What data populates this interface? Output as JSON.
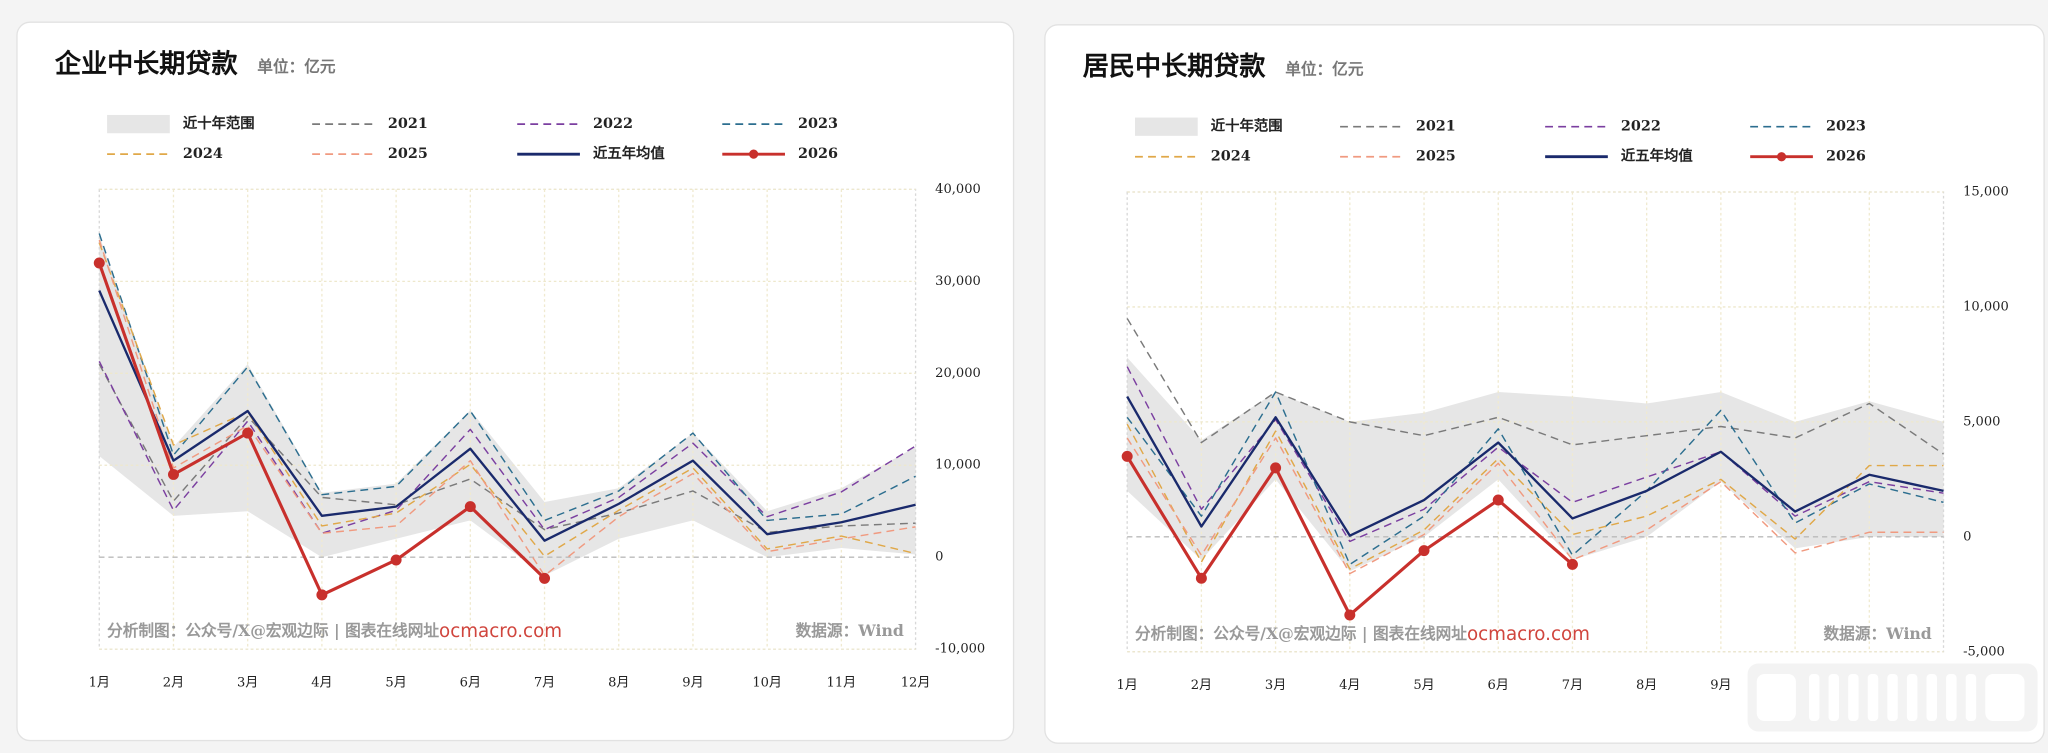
{
  "chart_data": [
    {
      "type": "line",
      "title": "企业中长期贷款",
      "subtitle": "单位：亿元",
      "source_note": "分析制图：公众号/X@宏观边际 | 图表在线网址",
      "website": "ocmacro.com",
      "data_source": "数据源：Wind",
      "categories": [
        "1月",
        "2月",
        "3月",
        "4月",
        "5月",
        "6月",
        "7月",
        "8月",
        "9月",
        "10月",
        "11月",
        "12月"
      ],
      "ylim": [
        -10000,
        40000
      ],
      "yticks": [
        {
          "value": -10000,
          "label": "-10,000"
        },
        0,
        {
          "value": 10000,
          "label": "10,000"
        },
        {
          "value": 20000,
          "label": "20,000"
        },
        {
          "value": 30000,
          "label": "30,000"
        },
        {
          "value": 40000,
          "label": "40,000"
        }
      ],
      "grid": true,
      "series": [
        {
          "name": "近十年范围",
          "color": "#e6e6e6",
          "line_style": "band",
          "high": [
            35000,
            12000,
            21000,
            7000,
            8000,
            16000,
            6000,
            7500,
            13500,
            5000,
            7500,
            12000
          ],
          "low": [
            11000,
            4500,
            5000,
            0,
            2000,
            4000,
            -2000,
            2000,
            4000,
            0,
            1000,
            300
          ]
        },
        {
          "name": "2021",
          "color": "#7a7a7a",
          "line_style": "dashed",
          "values": [
            21000,
            6100,
            15300,
            6500,
            5700,
            8500,
            3000,
            4800,
            7200,
            2700,
            3400,
            3700
          ]
        },
        {
          "name": "2022",
          "color": "#7b3fa0",
          "line_style": "dashed",
          "values": [
            21300,
            5100,
            14800,
            2600,
            5100,
            13900,
            3000,
            6500,
            12400,
            4400,
            7100,
            12100
          ]
        },
        {
          "name": "2023",
          "color": "#2c6e8f",
          "line_style": "dashed",
          "values": [
            35200,
            11100,
            20700,
            6800,
            7700,
            15900,
            4000,
            7200,
            13500,
            4000,
            4700,
            8800
          ]
        },
        {
          "name": "2024",
          "color": "#e0a848",
          "line_style": "dashed",
          "values": [
            34200,
            12200,
            15800,
            3400,
            4800,
            10100,
            100,
            5100,
            9700,
            900,
            2300,
            400
          ]
        },
        {
          "name": "2025",
          "color": "#f09a80",
          "line_style": "dashed",
          "values": [
            34500,
            9700,
            14300,
            2600,
            3400,
            10500,
            -2000,
            4400,
            9100,
            600,
            2000,
            3300
          ]
        },
        {
          "name": "近五年均值",
          "color": "#1a2a6c",
          "line_style": "solid",
          "values": [
            29000,
            10500,
            15900,
            4500,
            5500,
            11800,
            1800,
            5800,
            10500,
            2500,
            3800,
            5700
          ]
        },
        {
          "name": "2026",
          "color": "#c8302c",
          "line_style": "solid",
          "markers": true,
          "values": [
            32000,
            9000,
            13500,
            -4100,
            -300,
            5500,
            -2300,
            null,
            null,
            null,
            null,
            null
          ]
        }
      ]
    },
    {
      "type": "line",
      "title": "居民中长期贷款",
      "subtitle": "单位：亿元",
      "source_note": "分析制图：公众号/X@宏观边际 | 图表在线网址",
      "website": "ocmacro.com",
      "data_source": "数据源：Wind",
      "categories": [
        "1月",
        "2月",
        "3月",
        "4月",
        "5月",
        "6月",
        "7月",
        "8月",
        "9月",
        null,
        null,
        null
      ],
      "ylim": [
        -5000,
        15000
      ],
      "yticks": [
        {
          "value": -5000,
          "label": "-5,000"
        },
        0,
        {
          "value": 5000,
          "label": "5,000"
        },
        {
          "value": 10000,
          "label": "10,000"
        },
        {
          "value": 15000,
          "label": "15,000"
        }
      ],
      "grid": true,
      "series": [
        {
          "name": "近十年范围",
          "color": "#e6e6e6",
          "line_style": "band",
          "high": [
            7800,
            4200,
            6300,
            5000,
            5400,
            6300,
            6100,
            5800,
            6300,
            5000,
            5900,
            5000
          ],
          "low": [
            2000,
            -1000,
            2500,
            -1500,
            0,
            2500,
            -1000,
            0,
            2400,
            -500,
            0,
            0
          ]
        },
        {
          "name": "2021",
          "color": "#7a7a7a",
          "line_style": "dashed",
          "values": [
            9500,
            4100,
            6300,
            5000,
            4400,
            5200,
            4000,
            4400,
            4800,
            4300,
            5800,
            3600
          ]
        },
        {
          "name": "2022",
          "color": "#7b3fa0",
          "line_style": "dashed",
          "values": [
            7400,
            1200,
            5100,
            -200,
            1200,
            3900,
            1500,
            2600,
            3700,
            900,
            2400,
            1900
          ]
        },
        {
          "name": "2023",
          "color": "#2c6e8f",
          "line_style": "dashed",
          "values": [
            5200,
            900,
            6300,
            -1200,
            900,
            4700,
            -800,
            2000,
            5500,
            600,
            2300,
            1500
          ]
        },
        {
          "name": "2024",
          "color": "#e0a848",
          "line_style": "dashed",
          "values": [
            4900,
            -1100,
            4600,
            -1400,
            300,
            3400,
            100,
            900,
            2500,
            -100,
            3100,
            3100
          ]
        },
        {
          "name": "2025",
          "color": "#f09a80",
          "line_style": "dashed",
          "values": [
            4300,
            -800,
            4300,
            -1600,
            100,
            3200,
            -1000,
            300,
            2400,
            -700,
            200,
            200
          ]
        },
        {
          "name": "近五年均值",
          "color": "#1a2a6c",
          "line_style": "solid",
          "values": [
            6100,
            450,
            5200,
            50,
            1600,
            4100,
            800,
            2000,
            3700,
            1100,
            2700,
            2000
          ]
        },
        {
          "name": "2026",
          "color": "#c8302c",
          "line_style": "solid",
          "markers": true,
          "values": [
            3500,
            -1800,
            3000,
            -3400,
            -600,
            1600,
            -1200,
            null,
            null,
            null,
            null,
            null
          ]
        }
      ]
    }
  ]
}
